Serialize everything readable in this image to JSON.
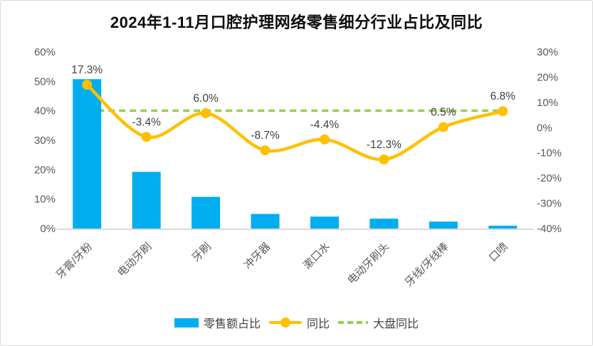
{
  "title": "2024年1-11月口腔护理网络零售细分行业占比及同比",
  "chart_data": {
    "type": "bar",
    "combo": "bar + smooth line + dashed reference line",
    "title": "2024年1-11月口腔护理网络零售细分行业占比及同比",
    "categories": [
      "牙膏/牙粉",
      "电动牙刷",
      "牙刷",
      "冲牙器",
      "漱口水",
      "电动牙刷头",
      "牙线/牙线棒",
      "口喷"
    ],
    "series": [
      {
        "name": "零售额占比",
        "type": "bar",
        "axis": "left",
        "color": "#00AEEF",
        "values": [
          51,
          19.5,
          11,
          5.2,
          4.3,
          3.6,
          2.6,
          1.2
        ]
      },
      {
        "name": "同比",
        "type": "line",
        "axis": "right",
        "color": "#FFC000",
        "values": [
          17.3,
          -3.4,
          6.0,
          -8.7,
          -4.4,
          -12.3,
          0.5,
          6.8
        ],
        "point_labels": [
          "17.3%",
          "-3.4%",
          "6.0%",
          "-8.7%",
          "-4.4%",
          "-12.3%",
          "0.5%",
          "6.8%"
        ]
      },
      {
        "name": "大盘同比",
        "type": "dashed-reference-line",
        "axis": "right",
        "color": "#92D050",
        "value": 7
      }
    ],
    "left_axis": {
      "min": 0,
      "max": 60,
      "step": 10,
      "tick_labels": [
        "0%",
        "10%",
        "20%",
        "30%",
        "40%",
        "50%",
        "60%"
      ]
    },
    "right_axis": {
      "min": -40,
      "max": 30,
      "step": 10,
      "tick_labels": [
        "-40%",
        "-30%",
        "-20%",
        "-10%",
        "0%",
        "10%",
        "20%",
        "30%"
      ]
    },
    "grid": false,
    "legend_position": "bottom"
  },
  "style": {
    "axis_text_color": "#595959",
    "data_label_color": "#404040",
    "axis_line_color": "#D9D9D9",
    "category_label_color": "#595959",
    "background": "#FFFFFF",
    "border_color": "#D9D9D9"
  }
}
